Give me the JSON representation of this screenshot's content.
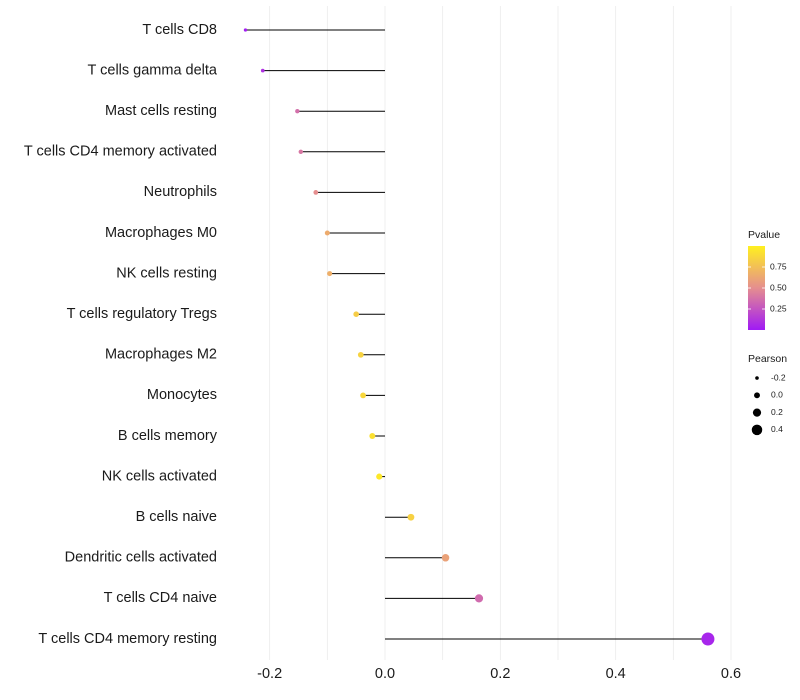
{
  "chart_data": {
    "type": "lollipop",
    "title": "",
    "xlabel": "",
    "ylabel": "",
    "xlim": [
      -0.27,
      0.6
    ],
    "x_ticks": [
      -0.2,
      0.0,
      0.2,
      0.4,
      0.6
    ],
    "x_tick_labels": [
      "-0.2",
      "0.0",
      "0.2",
      "0.4",
      "0.6"
    ],
    "grid": true,
    "categories": [
      "T cells CD8",
      "T cells gamma delta",
      "Mast cells resting",
      "T cells CD4 memory activated",
      "Neutrophils",
      "Macrophages M0",
      "NK cells resting",
      "T cells regulatory  Tregs ",
      "Macrophages M2",
      "Monocytes",
      "B cells memory",
      "NK cells activated",
      "B cells naive",
      "Dendritic cells activated",
      "T cells CD4 naive",
      "T cells CD4 memory resting"
    ],
    "pearson": [
      -0.242,
      -0.212,
      -0.152,
      -0.146,
      -0.12,
      -0.1,
      -0.096,
      -0.05,
      -0.042,
      -0.038,
      -0.022,
      -0.01,
      0.045,
      0.105,
      0.163,
      0.56
    ],
    "pvalue": [
      0.02,
      0.1,
      0.37,
      0.4,
      0.5,
      0.65,
      0.67,
      0.82,
      0.85,
      0.87,
      0.92,
      0.96,
      0.84,
      0.6,
      0.35,
      0.05
    ],
    "legend_color": {
      "title": "Pvalue",
      "breaks": [
        0.25,
        0.5,
        0.75
      ],
      "labels": [
        "0.25",
        "0.50",
        "0.75"
      ],
      "range": [
        0.0,
        1.0
      ],
      "low_color": "#a01af5",
      "mid_color": "#e58e8f",
      "high_color": "#fff01f",
      "position": "right"
    },
    "legend_size": {
      "title": "Pearson",
      "breaks": [
        -0.2,
        0.0,
        0.2,
        0.4
      ],
      "labels": [
        "-0.2",
        "0.0",
        "0.2",
        "0.4"
      ],
      "position": "right"
    }
  }
}
